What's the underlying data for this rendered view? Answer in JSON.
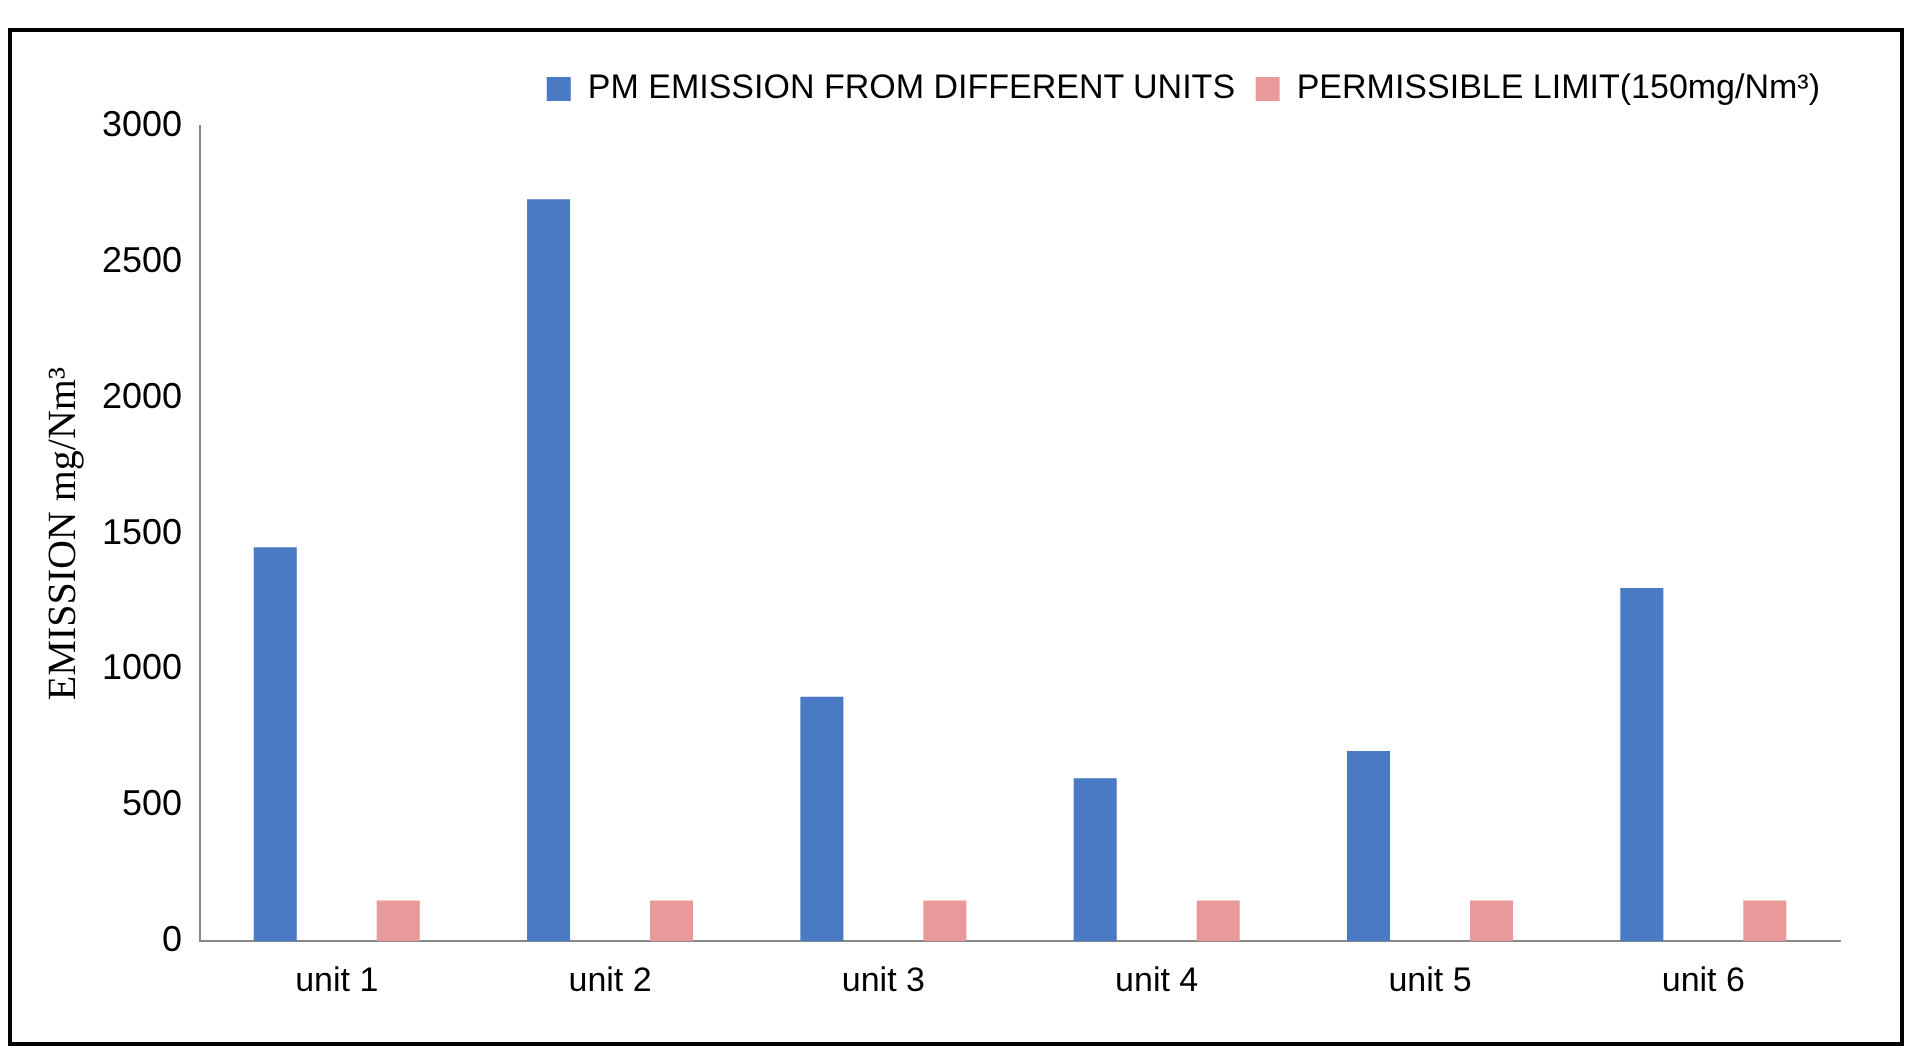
{
  "chart_data": {
    "type": "bar",
    "ylabel": "EMISSION mg/Nm³",
    "categories": [
      "unit 1",
      "unit 2",
      "unit 3",
      "unit 4",
      "unit 5",
      "unit 6"
    ],
    "series": [
      {
        "name": "PM EMISSION FROM DIFFERENT UNITS",
        "color": "#4a7ac4",
        "values": [
          1450,
          2730,
          900,
          600,
          700,
          1300
        ]
      },
      {
        "name": "PERMISSIBLE LIMIT(150mg/Nm³)",
        "color": "#e89a9a",
        "values": [
          150,
          150,
          150,
          150,
          150,
          150
        ]
      }
    ],
    "ylim": [
      0,
      3000
    ],
    "yticks": [
      0,
      500,
      1000,
      1500,
      2000,
      2500,
      3000
    ],
    "grid": false,
    "legend": "top right"
  }
}
